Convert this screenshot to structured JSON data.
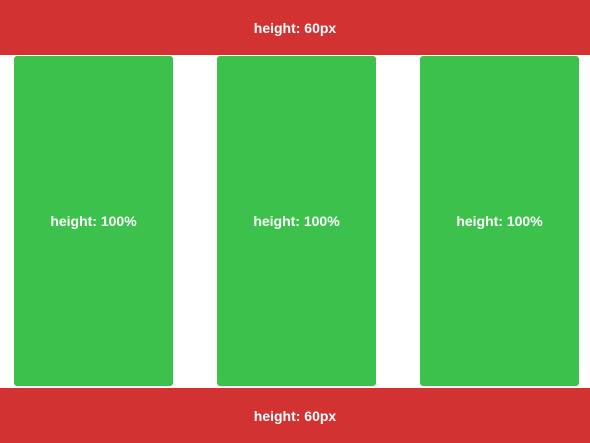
{
  "header": {
    "label": "height: 60px"
  },
  "columns": [
    {
      "label": "height: 100%"
    },
    {
      "label": "height: 100%"
    },
    {
      "label": "height: 100%"
    }
  ],
  "footer": {
    "label": "height: 60px"
  },
  "colors": {
    "bar": "#d33232",
    "column": "#3cc24c",
    "background": "#ffffff",
    "text": "#ffffff"
  }
}
